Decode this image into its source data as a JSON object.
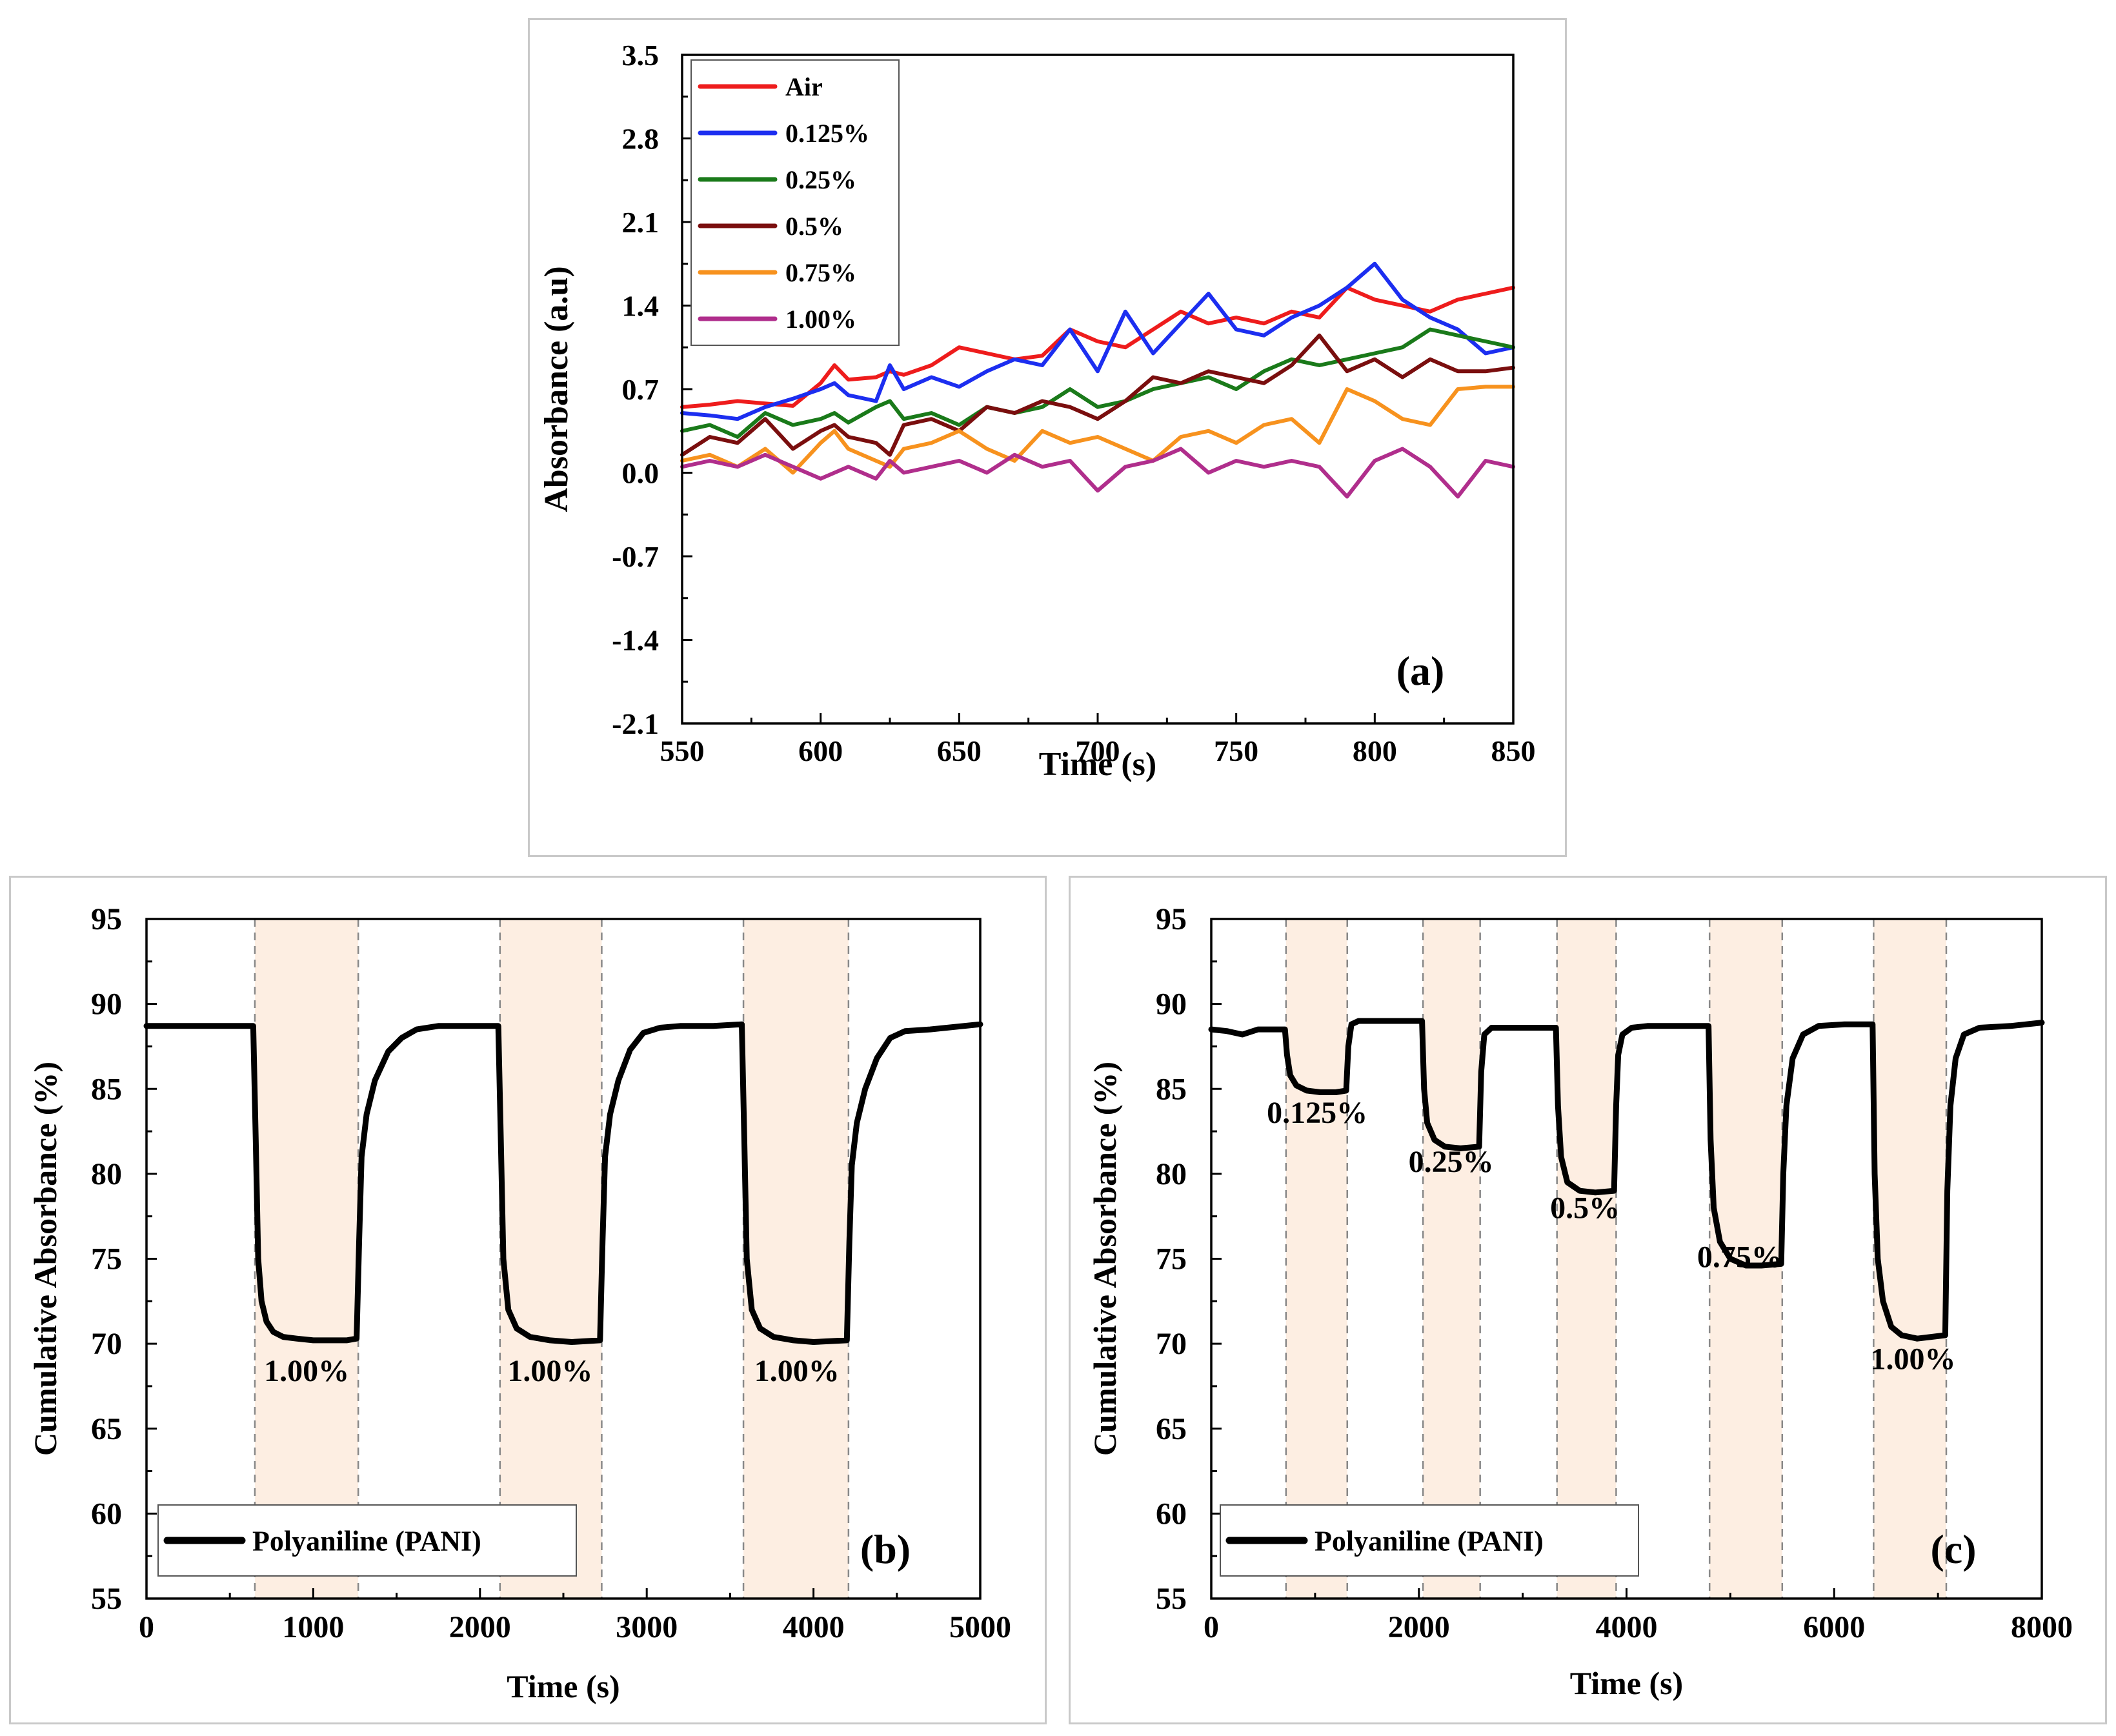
{
  "chart_data": [
    {
      "id": "a",
      "type": "line",
      "panel_label": "(a)",
      "xlabel": "Time (s)",
      "ylabel": "Absorbance (a.u)",
      "xlim": [
        550,
        850
      ],
      "ylim": [
        -2.1,
        3.5
      ],
      "xticks": [
        550,
        600,
        650,
        700,
        750,
        800,
        850
      ],
      "yticks": [
        -2.1,
        -1.4,
        -0.7,
        0.0,
        0.7,
        1.4,
        2.1,
        2.8,
        3.5
      ],
      "ytick_labels": [
        "-2.1",
        "-1.4",
        "-0.7",
        "0.0",
        "0.7",
        "1.4",
        "2.1",
        "2.8",
        "3.5"
      ],
      "legend_position": "top-left",
      "x": [
        550,
        560,
        570,
        580,
        590,
        600,
        605,
        610,
        620,
        625,
        630,
        640,
        650,
        660,
        670,
        680,
        690,
        700,
        710,
        720,
        730,
        740,
        750,
        760,
        770,
        780,
        790,
        800,
        810,
        820,
        830,
        840,
        850
      ],
      "series": [
        {
          "name": "Air",
          "color": "#ee1c1c",
          "values": [
            0.55,
            0.57,
            0.6,
            0.58,
            0.56,
            0.75,
            0.9,
            0.78,
            0.8,
            0.85,
            0.82,
            0.9,
            1.05,
            1.0,
            0.95,
            0.98,
            1.2,
            1.1,
            1.05,
            1.2,
            1.35,
            1.25,
            1.3,
            1.25,
            1.35,
            1.3,
            1.55,
            1.45,
            1.4,
            1.35,
            1.45,
            1.5,
            1.55
          ]
        },
        {
          "name": "0.125%",
          "color": "#1c2ef0",
          "values": [
            0.5,
            0.48,
            0.45,
            0.55,
            0.62,
            0.7,
            0.75,
            0.65,
            0.6,
            0.9,
            0.7,
            0.8,
            0.72,
            0.85,
            0.95,
            0.9,
            1.2,
            0.85,
            1.35,
            1.0,
            1.25,
            1.5,
            1.2,
            1.15,
            1.3,
            1.4,
            1.55,
            1.75,
            1.45,
            1.3,
            1.2,
            1.0,
            1.05
          ]
        },
        {
          "name": "0.25%",
          "color": "#1a7a1a",
          "values": [
            0.35,
            0.4,
            0.3,
            0.5,
            0.4,
            0.45,
            0.5,
            0.42,
            0.55,
            0.6,
            0.45,
            0.5,
            0.4,
            0.55,
            0.5,
            0.55,
            0.7,
            0.55,
            0.6,
            0.7,
            0.75,
            0.8,
            0.7,
            0.85,
            0.95,
            0.9,
            0.95,
            1.0,
            1.05,
            1.2,
            1.15,
            1.1,
            1.05
          ]
        },
        {
          "name": "0.5%",
          "color": "#7a0e0e",
          "values": [
            0.15,
            0.3,
            0.25,
            0.45,
            0.2,
            0.35,
            0.4,
            0.3,
            0.25,
            0.15,
            0.4,
            0.45,
            0.35,
            0.55,
            0.5,
            0.6,
            0.55,
            0.45,
            0.6,
            0.8,
            0.75,
            0.85,
            0.8,
            0.75,
            0.9,
            1.15,
            0.85,
            0.95,
            0.8,
            0.95,
            0.85,
            0.85,
            0.88
          ]
        },
        {
          "name": "0.75%",
          "color": "#f7921e",
          "values": [
            0.1,
            0.15,
            0.05,
            0.2,
            0.0,
            0.25,
            0.35,
            0.2,
            0.1,
            0.05,
            0.2,
            0.25,
            0.35,
            0.2,
            0.1,
            0.35,
            0.25,
            0.3,
            0.2,
            0.1,
            0.3,
            0.35,
            0.25,
            0.4,
            0.45,
            0.25,
            0.7,
            0.6,
            0.45,
            0.4,
            0.7,
            0.72,
            0.72
          ]
        },
        {
          "name": "1.00%",
          "color": "#b02e8c",
          "values": [
            0.05,
            0.1,
            0.05,
            0.15,
            0.05,
            -0.05,
            0.0,
            0.05,
            -0.05,
            0.1,
            0.0,
            0.05,
            0.1,
            0.0,
            0.15,
            0.05,
            0.1,
            -0.15,
            0.05,
            0.1,
            0.2,
            0.0,
            0.1,
            0.05,
            0.1,
            0.05,
            -0.2,
            0.1,
            0.2,
            0.05,
            -0.2,
            0.1,
            0.05
          ]
        }
      ]
    },
    {
      "id": "b",
      "type": "line",
      "panel_label": "(b)",
      "xlabel": "Time (s)",
      "ylabel": "Cumulative Absorbance (%)",
      "xlim": [
        0,
        5000
      ],
      "ylim": [
        55,
        95
      ],
      "xticks": [
        0,
        1000,
        2000,
        3000,
        4000,
        5000
      ],
      "yticks": [
        55,
        60,
        65,
        70,
        75,
        80,
        85,
        90,
        95
      ],
      "legend_position": "bottom-left",
      "shaded_intervals": [
        [
          650,
          1270
        ],
        [
          2120,
          2730
        ],
        [
          3580,
          4210
        ]
      ],
      "annotations": [
        {
          "text": "1.00%",
          "x": 960,
          "y": 67.8
        },
        {
          "text": "1.00%",
          "x": 2420,
          "y": 67.8
        },
        {
          "text": "1.00%",
          "x": 3900,
          "y": 67.8
        }
      ],
      "series": [
        {
          "name": "Polyaniline (PANI)",
          "color": "#000000",
          "x": [
            0,
            300,
            640,
            655,
            670,
            690,
            720,
            760,
            820,
            900,
            1000,
            1100,
            1200,
            1260,
            1275,
            1290,
            1320,
            1370,
            1450,
            1530,
            1620,
            1750,
            1900,
            2110,
            2125,
            2140,
            2170,
            2220,
            2300,
            2420,
            2550,
            2720,
            2735,
            2750,
            2780,
            2830,
            2900,
            2980,
            3080,
            3200,
            3400,
            3570,
            3585,
            3600,
            3630,
            3680,
            3760,
            3880,
            4000,
            4200,
            4215,
            4230,
            4260,
            4310,
            4380,
            4460,
            4550,
            4700,
            5000
          ],
          "values": [
            88.7,
            88.7,
            88.7,
            82.0,
            75.0,
            72.5,
            71.3,
            70.7,
            70.4,
            70.3,
            70.2,
            70.2,
            70.2,
            70.3,
            76.0,
            81.0,
            83.5,
            85.5,
            87.2,
            88.0,
            88.5,
            88.7,
            88.7,
            88.7,
            82.0,
            75.0,
            72.0,
            70.9,
            70.4,
            70.2,
            70.1,
            70.2,
            76.0,
            81.0,
            83.5,
            85.5,
            87.3,
            88.3,
            88.6,
            88.7,
            88.7,
            88.8,
            82.0,
            75.0,
            72.0,
            70.9,
            70.4,
            70.2,
            70.1,
            70.2,
            76.0,
            80.5,
            83.0,
            85.0,
            86.8,
            88.0,
            88.4,
            88.5,
            88.8
          ]
        }
      ]
    },
    {
      "id": "c",
      "type": "line",
      "panel_label": "(c)",
      "xlabel": "Time (s)",
      "ylabel": "Cumulative Absorbance (%)",
      "xlim": [
        0,
        8000
      ],
      "ylim": [
        55,
        95
      ],
      "xticks": [
        0,
        2000,
        4000,
        6000,
        8000
      ],
      "yticks": [
        55,
        60,
        65,
        70,
        75,
        80,
        85,
        90,
        95
      ],
      "legend_position": "bottom-left",
      "shaded_intervals": [
        [
          720,
          1310
        ],
        [
          2040,
          2590
        ],
        [
          3330,
          3900
        ],
        [
          4800,
          5500
        ],
        [
          6380,
          7080
        ]
      ],
      "annotations": [
        {
          "text": "0.125%",
          "x": 1020,
          "y": 83.0
        },
        {
          "text": "0.25%",
          "x": 2310,
          "y": 80.1
        },
        {
          "text": "0.5%",
          "x": 3600,
          "y": 77.4
        },
        {
          "text": "0.75%",
          "x": 5090,
          "y": 74.5
        },
        {
          "text": "1.00%",
          "x": 6760,
          "y": 68.5
        }
      ],
      "series": [
        {
          "name": "Polyaniline (PANI)",
          "color": "#000000",
          "x": [
            0,
            150,
            300,
            450,
            600,
            710,
            730,
            760,
            820,
            920,
            1050,
            1200,
            1300,
            1320,
            1350,
            1420,
            1600,
            1800,
            2030,
            2050,
            2080,
            2150,
            2250,
            2400,
            2580,
            2600,
            2630,
            2700,
            2850,
            3100,
            3320,
            3340,
            3370,
            3430,
            3550,
            3700,
            3880,
            3900,
            3920,
            3960,
            4050,
            4200,
            4500,
            4790,
            4810,
            4840,
            4900,
            5000,
            5150,
            5300,
            5490,
            5510,
            5540,
            5600,
            5700,
            5850,
            6100,
            6370,
            6390,
            6420,
            6470,
            6550,
            6650,
            6800,
            7070,
            7090,
            7120,
            7170,
            7250,
            7400,
            7700,
            8000
          ],
          "values": [
            88.5,
            88.4,
            88.2,
            88.5,
            88.5,
            88.5,
            87.0,
            85.8,
            85.2,
            84.9,
            84.8,
            84.8,
            84.9,
            87.5,
            88.8,
            89.0,
            89.0,
            89.0,
            89.0,
            85.0,
            83.0,
            82.0,
            81.6,
            81.5,
            81.6,
            86.0,
            88.2,
            88.6,
            88.6,
            88.6,
            88.6,
            84.0,
            81.0,
            79.5,
            79.0,
            78.9,
            79.0,
            84.0,
            87.0,
            88.2,
            88.6,
            88.7,
            88.7,
            88.7,
            82.0,
            78.0,
            76.0,
            75.0,
            74.6,
            74.6,
            74.7,
            80.0,
            84.0,
            86.8,
            88.2,
            88.7,
            88.8,
            88.8,
            80.0,
            75.0,
            72.5,
            71.0,
            70.5,
            70.3,
            70.5,
            79.0,
            84.0,
            86.8,
            88.2,
            88.6,
            88.7,
            88.9
          ]
        }
      ]
    }
  ]
}
